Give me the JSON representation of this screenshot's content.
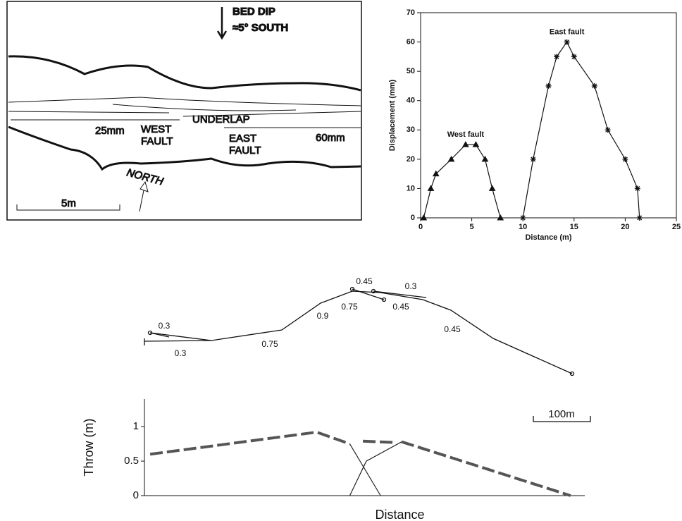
{
  "sketch": {
    "bed_dip": "BED DIP",
    "dip_value": "≈5° SOUTH",
    "underlap": "UNDERLAP",
    "left_offset": "25mm",
    "west_fault": [
      "WEST",
      "FAULT"
    ],
    "east_fault": [
      "EAST",
      "FAULT"
    ],
    "right_offset": "60mm",
    "north": "NORTH",
    "scale": "5m"
  },
  "trace_map": {
    "labels": [
      "0.3",
      "0.3",
      "0.75",
      "0.9",
      "0.75",
      "0.45",
      "0.45",
      "0.3",
      "0.45"
    ],
    "scale": "100m"
  },
  "chart_data": [
    {
      "type": "line",
      "xlabel": "Distance (m)",
      "ylabel": "Displacement (mm)",
      "xlim": [
        0,
        25
      ],
      "xticks": [
        0,
        5,
        10,
        15,
        20,
        25
      ],
      "ylim": [
        0,
        70
      ],
      "yticks": [
        0,
        10,
        20,
        30,
        40,
        50,
        60,
        70
      ],
      "series": [
        {
          "name": "West fault",
          "color": "#111111",
          "marker": "triangle",
          "x": [
            0.3,
            1.0,
            1.5,
            3.0,
            4.4,
            5.4,
            6.3,
            7.0,
            7.8
          ],
          "values": [
            0,
            10,
            15,
            20,
            25,
            25,
            20,
            10,
            0
          ]
        },
        {
          "name": "East fault",
          "color": "#111111",
          "marker": "asterisk",
          "x": [
            10,
            11,
            12.5,
            13.3,
            14.3,
            15.0,
            17.0,
            18.3,
            20.0,
            21.2,
            21.4
          ],
          "values": [
            0,
            20,
            45,
            55,
            60,
            55,
            45,
            30,
            20,
            10,
            0
          ]
        }
      ]
    },
    {
      "type": "line",
      "xlabel": "Distance",
      "ylabel": "Throw  (m)",
      "xlim": [
        0,
        772
      ],
      "ylim": [
        0,
        1.4
      ],
      "yticks": [
        0,
        0.5,
        1
      ],
      "series": [
        {
          "color": "#555555",
          "style": "dashed",
          "x": [
            10,
            302,
            360
          ],
          "values": [
            0.6,
            0.92,
            0.75
          ]
        },
        {
          "color": "#222222",
          "style": "solid",
          "x": [
            360,
            414
          ],
          "values": [
            0.75,
            0
          ]
        },
        {
          "color": "#222222",
          "style": "solid",
          "x": [
            360,
            389,
            451
          ],
          "values": [
            0,
            0.5,
            0.78
          ]
        },
        {
          "color": "#555555",
          "style": "dashed",
          "x": [
            383,
            438
          ],
          "values": [
            0.79,
            0.77
          ]
        },
        {
          "color": "#555555",
          "style": "dashed",
          "x": [
            451,
            747
          ],
          "values": [
            0.78,
            0
          ]
        }
      ]
    }
  ]
}
